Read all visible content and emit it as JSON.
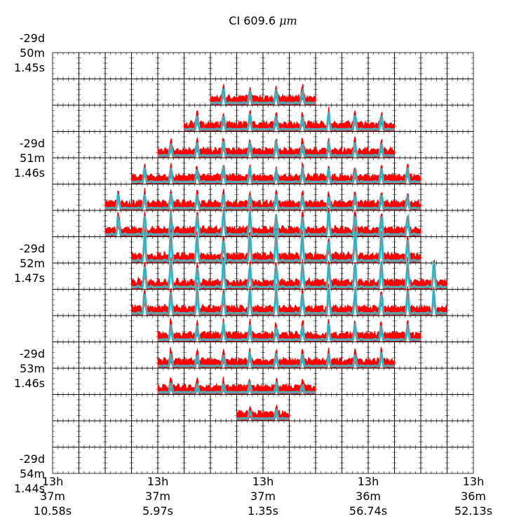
{
  "chart_data": {
    "type": "line",
    "title": "CI 609.6",
    "title_unit": "μm",
    "grid": {
      "rows": 16,
      "cols": 16
    },
    "x_tick_labels": [
      "13h\n37m\n10.58s",
      "13h\n37m\n5.97s",
      "13h\n37m\n1.35s",
      "13h\n36m\n56.74s",
      "13h\n36m\n52.13s"
    ],
    "y_tick_labels": [
      "-29d\n50m\n1.45s",
      "-29d\n51m\n1.46s",
      "-29d\n52m\n1.47s",
      "-29d\n53m\n1.46s",
      "-29d\n54m\n1.44s"
    ],
    "series_colors": {
      "observed": "#ff0000",
      "model": "#7b8f93",
      "model_edge": "#00e5ff"
    },
    "spectra_rows": [
      {
        "row": 1,
        "col_start": 6,
        "col_end": 9,
        "line_peak": 0.45
      },
      {
        "row": 2,
        "col_start": 5,
        "col_end": 12,
        "line_peak": 0.5
      },
      {
        "row": 3,
        "col_start": 4,
        "col_end": 12,
        "line_peak": 0.45
      },
      {
        "row": 4,
        "col_start": 3,
        "col_end": 13,
        "line_peak": 0.45
      },
      {
        "row": 5,
        "col_start": 2,
        "col_end": 13,
        "line_peak": 0.45
      },
      {
        "row": 6,
        "col_start": 2,
        "col_end": 13,
        "line_peak": 0.7
      },
      {
        "row": 7,
        "col_start": 3,
        "col_end": 13,
        "line_peak": 0.85
      },
      {
        "row": 8,
        "col_start": 3,
        "col_end": 14,
        "line_peak": 0.85
      },
      {
        "row": 9,
        "col_start": 3,
        "col_end": 14,
        "line_peak": 0.75
      },
      {
        "row": 10,
        "col_start": 4,
        "col_end": 13,
        "line_peak": 0.5
      },
      {
        "row": 11,
        "col_start": 4,
        "col_end": 12,
        "line_peak": 0.4
      },
      {
        "row": 12,
        "col_start": 4,
        "col_end": 6,
        "line_peak": 0.3
      },
      {
        "row": 12,
        "col_start": 7,
        "col_end": 9,
        "line_peak": 0.3
      },
      {
        "row": 13,
        "col_start": 7,
        "col_end": 8,
        "line_peak": 0.3
      }
    ]
  }
}
